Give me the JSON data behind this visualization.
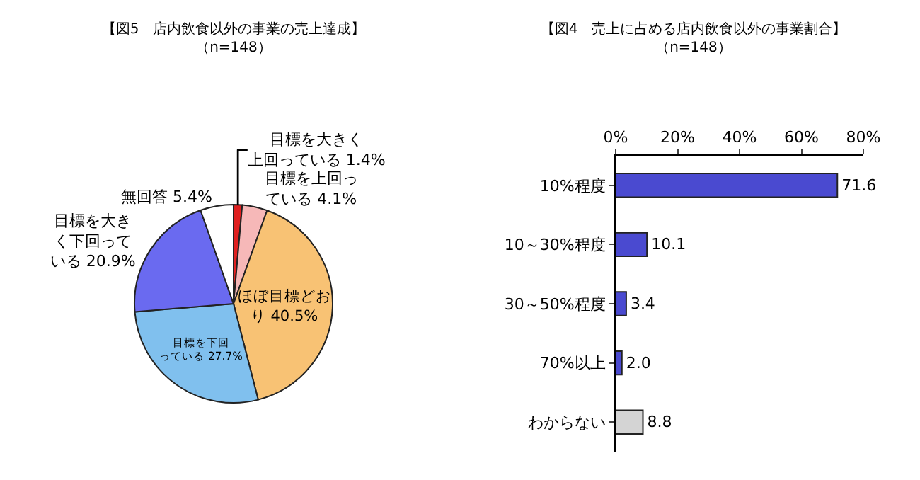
{
  "chart_data": [
    {
      "type": "pie",
      "title": "【図5　店内飲食以外の事業の売上達成】",
      "subtitle": "（n=148）",
      "categories": [
        "目標を大きく上回っている",
        "目標を上回っている",
        "ほぼ目標どおり",
        "目標を下回っている",
        "目標を大きく下回っている",
        "無回答"
      ],
      "values": [
        1.4,
        4.1,
        40.5,
        27.7,
        20.9,
        5.4
      ],
      "value_labels": [
        "1.4%",
        "4.1%",
        "40.5%",
        "27.7%",
        "20.9%",
        "5.4%"
      ],
      "colors": [
        "#e02020",
        "#f6b8b8",
        "#f8c274",
        "#80c0ee",
        "#6a6af0",
        "#ffffff"
      ],
      "legend": false
    },
    {
      "type": "bar",
      "orientation": "horizontal",
      "title": "【図4　売上に占める店内飲食以外の事業割合】",
      "subtitle": "（n=148）",
      "categories": [
        "10%程度",
        "10～30%程度",
        "30～50%程度",
        "70%以上",
        "わからない"
      ],
      "values": [
        71.6,
        10.1,
        3.4,
        2.0,
        8.8
      ],
      "colors": [
        "#4a4ad0",
        "#4a4ad0",
        "#4a4ad0",
        "#4a4ad0",
        "#d4d4d4"
      ],
      "value_labels": [
        "71.6",
        "10.1",
        "3.4",
        "2.0",
        "8.8"
      ],
      "xlim": [
        0,
        80
      ],
      "xticks": [
        {
          "value": 0,
          "label": "0%"
        },
        {
          "value": 20,
          "label": "20%"
        },
        {
          "value": 40,
          "label": "40%"
        },
        {
          "value": 60,
          "label": "60%"
        },
        {
          "value": 80,
          "label": "80%"
        }
      ],
      "grid": false,
      "legend": false
    }
  ]
}
